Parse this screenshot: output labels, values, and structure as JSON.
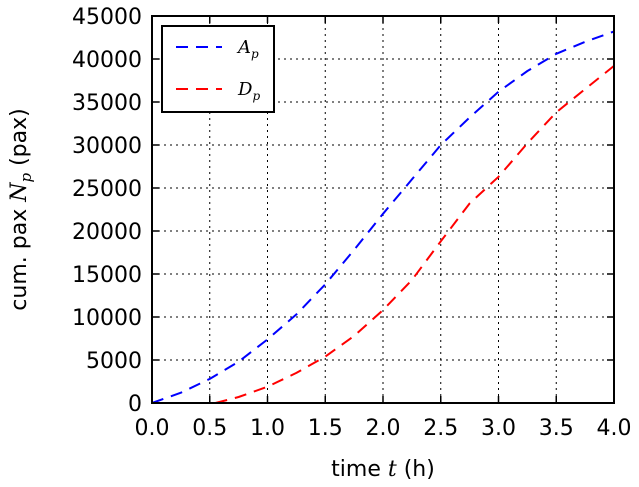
{
  "chart_data": {
    "type": "line",
    "xlabel": {
      "prefix": "time ",
      "var": "t",
      "suffix": " (h)"
    },
    "ylabel": {
      "prefix": "cum. pax ",
      "var": "N",
      "sub": "p",
      "suffix": " (pax)"
    },
    "xlim": [
      0.0,
      4.0
    ],
    "ylim": [
      0,
      45000
    ],
    "xticks": [
      "0.0",
      "0.5",
      "1.0",
      "1.5",
      "2.0",
      "2.5",
      "3.0",
      "3.5",
      "4.0"
    ],
    "yticks": [
      "0",
      "5000",
      "10000",
      "15000",
      "20000",
      "25000",
      "30000",
      "35000",
      "40000",
      "45000"
    ],
    "grid": true,
    "legend_position": "top-left",
    "series": [
      {
        "name": "A",
        "name_sub": "p",
        "color": "#0000ff",
        "x": [
          0.0,
          0.25,
          0.5,
          0.75,
          1.0,
          1.25,
          1.5,
          1.75,
          2.0,
          2.25,
          2.5,
          2.75,
          3.0,
          3.25,
          3.5,
          3.75,
          4.0
        ],
        "y": [
          0,
          1200,
          2800,
          4800,
          7400,
          10300,
          13800,
          17800,
          22000,
          26000,
          30000,
          33200,
          36200,
          38600,
          40600,
          42000,
          43200
        ]
      },
      {
        "name": "D",
        "name_sub": "p",
        "color": "#ff0000",
        "x": [
          0.55,
          0.75,
          1.0,
          1.25,
          1.5,
          1.75,
          2.0,
          2.25,
          2.5,
          2.75,
          3.0,
          3.25,
          3.5,
          3.75,
          4.0
        ],
        "y": [
          0,
          700,
          1900,
          3500,
          5400,
          7800,
          10800,
          14300,
          18800,
          23200,
          26300,
          30200,
          33800,
          36500,
          39200
        ]
      }
    ]
  }
}
